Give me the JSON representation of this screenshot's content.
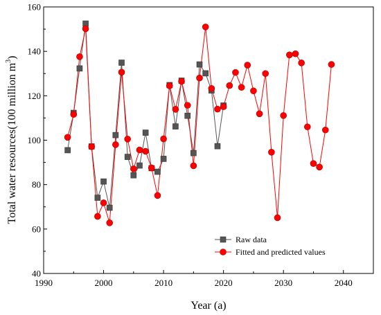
{
  "chart_data": {
    "type": "line",
    "xlabel": "Year (a)",
    "ylabel_main": "Total water resources(100 million m",
    "ylabel_sup": "3",
    "ylabel_close": ")",
    "xlim": [
      1990,
      2045
    ],
    "ylim": [
      40,
      160
    ],
    "xticks": [
      1990,
      2000,
      2010,
      2020,
      2030,
      2040
    ],
    "yticks": [
      40,
      60,
      80,
      100,
      120,
      140,
      160
    ],
    "legend_position": "bottom-right",
    "series": [
      {
        "name": "Raw data",
        "color": "#555555",
        "marker": "square",
        "x": [
          1994,
          1995,
          1996,
          1997,
          1998,
          1999,
          2000,
          2001,
          2002,
          2003,
          2004,
          2005,
          2006,
          2007,
          2008,
          2009,
          2010,
          2011,
          2012,
          2013,
          2014,
          2015,
          2016,
          2017,
          2018,
          2019,
          2020
        ],
        "y": [
          95.5,
          112.3,
          132.3,
          152.5,
          97.2,
          74.1,
          81.4,
          69.6,
          102.3,
          134.9,
          92.5,
          84.2,
          88.6,
          103.4,
          87.4,
          85.8,
          91.6,
          124.8,
          106.2,
          126.8,
          111.0,
          94.2,
          134.1,
          130.1,
          122.4,
          97.3,
          115.6
        ]
      },
      {
        "name": "Fitted and predicted values",
        "color": "#ff0000",
        "marker": "circle",
        "x": [
          1994,
          1995,
          1996,
          1997,
          1998,
          1999,
          2000,
          2001,
          2002,
          2003,
          2004,
          2005,
          2006,
          2007,
          2008,
          2009,
          2010,
          2011,
          2012,
          2013,
          2014,
          2015,
          2016,
          2017,
          2018,
          2019,
          2020,
          2021,
          2022,
          2023,
          2024,
          2025,
          2026,
          2027,
          2028,
          2029,
          2030,
          2031,
          2032,
          2033,
          2034,
          2035,
          2036,
          2037,
          2038
        ],
        "y": [
          101.3,
          111.6,
          137.6,
          150.2,
          97.1,
          65.7,
          71.8,
          62.8,
          98.0,
          130.6,
          100.5,
          87.1,
          95.6,
          95.0,
          87.5,
          75.1,
          100.6,
          124.5,
          113.9,
          126.5,
          115.7,
          88.5,
          128.0,
          151.0,
          123.3,
          114.0,
          115.1,
          124.6,
          130.5,
          123.8,
          133.8,
          122.2,
          111.9,
          130.0,
          94.6,
          65.1,
          111.1,
          138.4,
          138.9,
          134.8,
          106.0,
          89.5,
          87.9,
          104.6,
          134.1
        ]
      }
    ]
  }
}
